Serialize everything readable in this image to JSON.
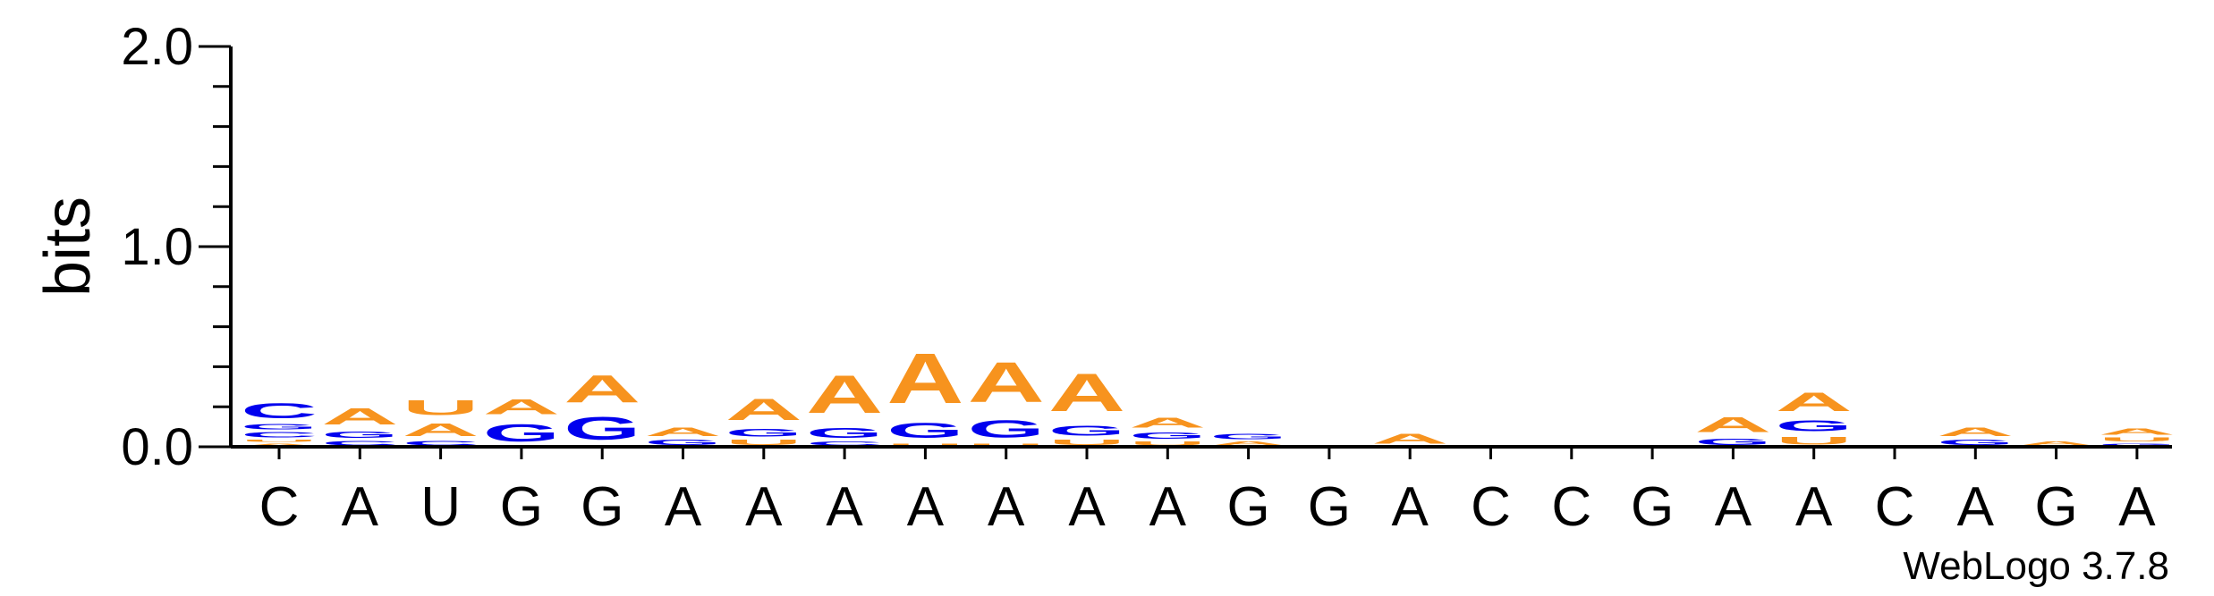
{
  "chart_data": {
    "type": "sequence_logo",
    "ylabel": "bits",
    "ylim": [
      0,
      2.0
    ],
    "yticks": [
      {
        "value": 0.0,
        "label": "0.0"
      },
      {
        "value": 1.0,
        "label": "1.0"
      },
      {
        "value": 2.0,
        "label": "2.0"
      }
    ],
    "ytick_minor_step": 0.2,
    "credit": "WebLogo 3.7.8",
    "colors": {
      "A": "#f7931e",
      "U": "#f7931e",
      "G": "#0000ee",
      "C": "#0000ee"
    },
    "positions": [
      {
        "label": "C",
        "stack": [
          {
            "letter": "A",
            "bits": 0.02
          },
          {
            "letter": "U",
            "bits": 0.02
          },
          {
            "letter": "C",
            "bits": 0.04
          },
          {
            "letter": "G",
            "bits": 0.04
          },
          {
            "letter": "C",
            "bits": 0.12
          }
        ]
      },
      {
        "label": "A",
        "stack": [
          {
            "letter": "C",
            "bits": 0.035
          },
          {
            "letter": "G",
            "bits": 0.05
          },
          {
            "letter": "A",
            "bits": 0.13
          }
        ]
      },
      {
        "label": "U",
        "stack": [
          {
            "letter": "C",
            "bits": 0.035
          },
          {
            "letter": "A",
            "bits": 0.1
          },
          {
            "letter": "U",
            "bits": 0.12
          }
        ]
      },
      {
        "label": "G",
        "stack": [
          {
            "letter": "G",
            "bits": 0.14
          },
          {
            "letter": "A",
            "bits": 0.12
          }
        ]
      },
      {
        "label": "G",
        "stack": [
          {
            "letter": "G",
            "bits": 0.18
          },
          {
            "letter": "A",
            "bits": 0.22
          }
        ]
      },
      {
        "label": "A",
        "stack": [
          {
            "letter": "G",
            "bits": 0.04
          },
          {
            "letter": "A",
            "bits": 0.07
          }
        ]
      },
      {
        "label": "A",
        "stack": [
          {
            "letter": "U",
            "bits": 0.04
          },
          {
            "letter": "G",
            "bits": 0.06
          },
          {
            "letter": "A",
            "bits": 0.17
          }
        ]
      },
      {
        "label": "A",
        "stack": [
          {
            "letter": "C",
            "bits": 0.03
          },
          {
            "letter": "G",
            "bits": 0.08
          },
          {
            "letter": "A",
            "bits": 0.3
          }
        ]
      },
      {
        "label": "A",
        "stack": [
          {
            "letter": "U",
            "bits": 0.02
          },
          {
            "letter": "G",
            "bits": 0.12
          },
          {
            "letter": "A",
            "bits": 0.4
          }
        ]
      },
      {
        "label": "A",
        "stack": [
          {
            "letter": "U",
            "bits": 0.02
          },
          {
            "letter": "G",
            "bits": 0.14
          },
          {
            "letter": "A",
            "bits": 0.32
          }
        ]
      },
      {
        "label": "A",
        "stack": [
          {
            "letter": "U",
            "bits": 0.04
          },
          {
            "letter": "G",
            "bits": 0.08
          },
          {
            "letter": "A",
            "bits": 0.3
          }
        ]
      },
      {
        "label": "A",
        "stack": [
          {
            "letter": "U",
            "bits": 0.03
          },
          {
            "letter": "G",
            "bits": 0.05
          },
          {
            "letter": "A",
            "bits": 0.08
          }
        ]
      },
      {
        "label": "G",
        "stack": [
          {
            "letter": "A",
            "bits": 0.03
          },
          {
            "letter": "G",
            "bits": 0.04
          }
        ]
      },
      {
        "label": "G",
        "stack": []
      },
      {
        "label": "A",
        "stack": [
          {
            "letter": "A",
            "bits": 0.08
          }
        ]
      },
      {
        "label": "C",
        "stack": []
      },
      {
        "label": "C",
        "stack": []
      },
      {
        "label": "G",
        "stack": []
      },
      {
        "label": "A",
        "stack": [
          {
            "letter": "G",
            "bits": 0.05
          },
          {
            "letter": "A",
            "bits": 0.12
          }
        ]
      },
      {
        "label": "A",
        "stack": [
          {
            "letter": "U",
            "bits": 0.06
          },
          {
            "letter": "G",
            "bits": 0.09
          },
          {
            "letter": "A",
            "bits": 0.15
          }
        ]
      },
      {
        "label": "C",
        "stack": []
      },
      {
        "label": "A",
        "stack": [
          {
            "letter": "G",
            "bits": 0.04
          },
          {
            "letter": "A",
            "bits": 0.07
          }
        ]
      },
      {
        "label": "G",
        "stack": [
          {
            "letter": "A",
            "bits": 0.03
          }
        ]
      },
      {
        "label": "A",
        "stack": [
          {
            "letter": "G",
            "bits": 0.02
          },
          {
            "letter": "U",
            "bits": 0.03
          },
          {
            "letter": "A",
            "bits": 0.05
          }
        ]
      }
    ]
  }
}
